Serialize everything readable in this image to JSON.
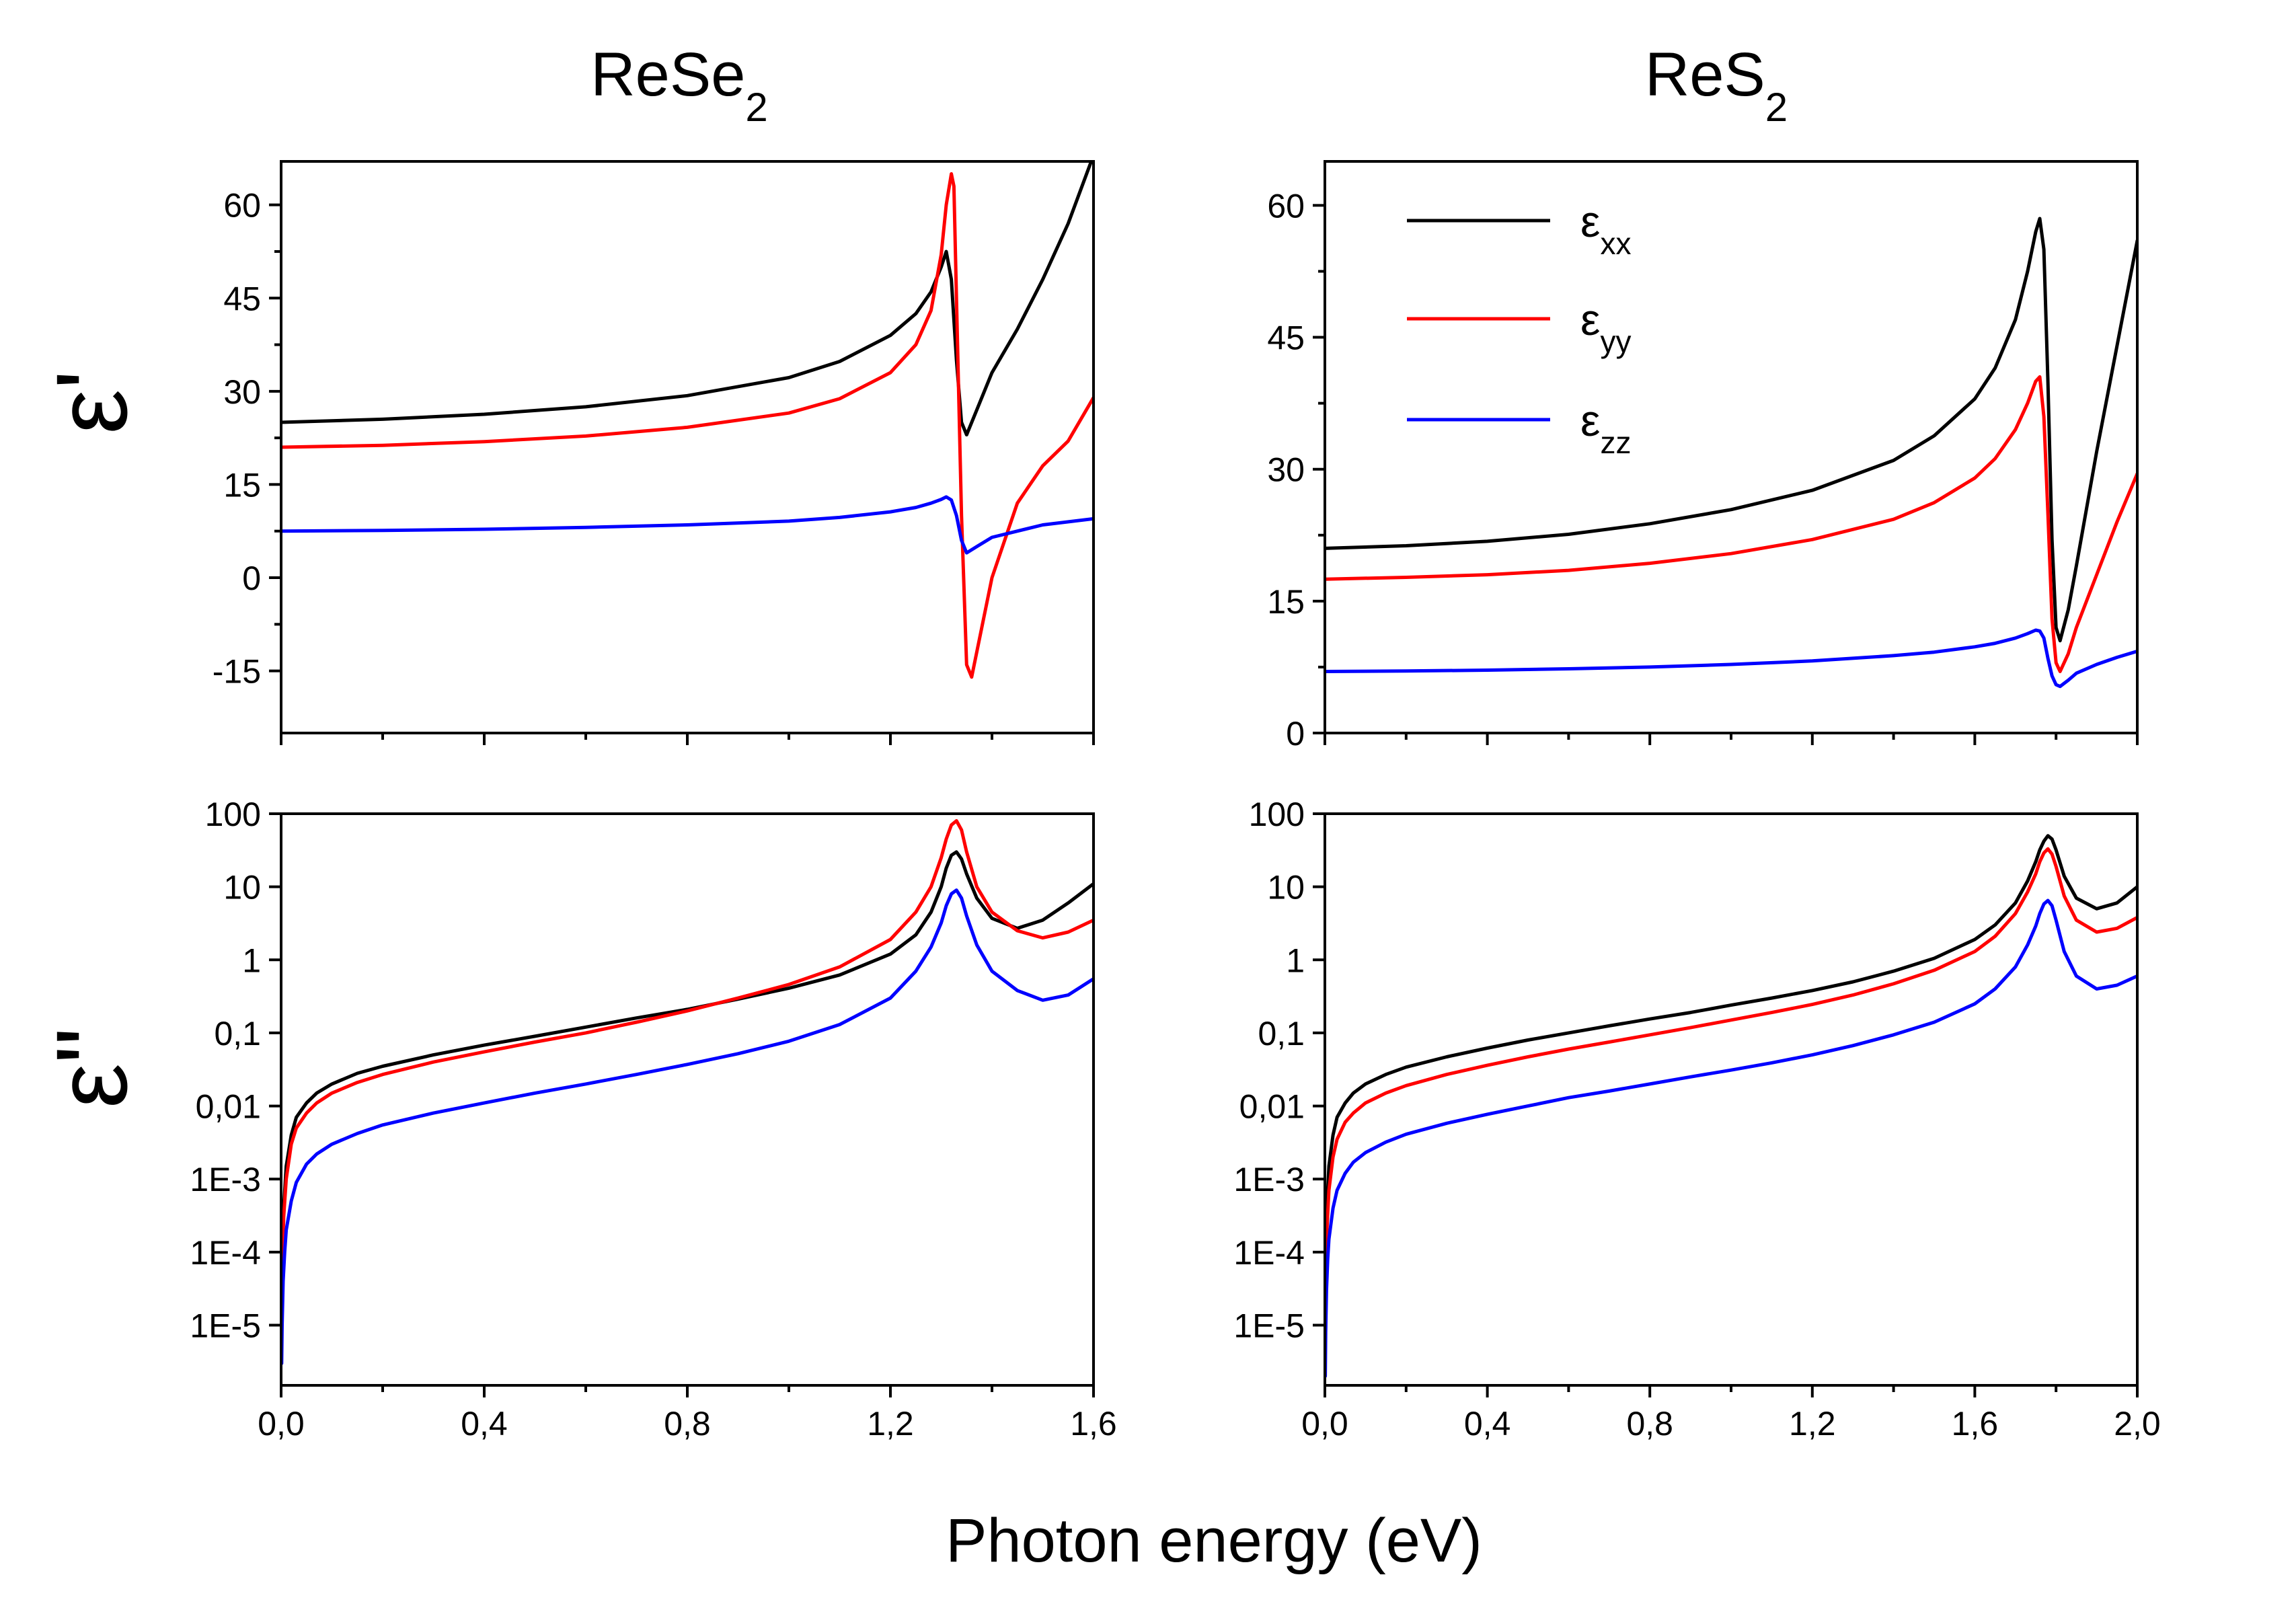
{
  "figure": {
    "columns": [
      {
        "title": "ReSe",
        "subscript": "2"
      },
      {
        "title": "ReS",
        "subscript": "2"
      }
    ],
    "xlabel": "Photon energy (eV)",
    "row_labels": [
      {
        "symbol": "ε",
        "prime": "'"
      },
      {
        "symbol": "ε",
        "prime": "\""
      }
    ],
    "legend": [
      {
        "symbol": "ε",
        "sub": "xx",
        "color": "#000000"
      },
      {
        "symbol": "ε",
        "sub": "yy",
        "color": "#ff0000"
      },
      {
        "symbol": "ε",
        "sub": "zz",
        "color": "#0000ff"
      }
    ]
  },
  "chart_data": [
    {
      "id": "rese2-real",
      "type": "line",
      "title": "ReSe2",
      "ylabel": "ε'",
      "xlim": [
        0,
        1.6
      ],
      "ylim": [
        -25,
        67
      ],
      "yscale": "linear",
      "xticks": [
        "0,0",
        "0,4",
        "0,8",
        "1,2",
        "1,6"
      ],
      "yticks": [
        {
          "value": -15,
          "label": "-15"
        },
        {
          "value": 0,
          "label": "0"
        },
        {
          "value": 15,
          "label": "15"
        },
        {
          "value": 30,
          "label": "30"
        },
        {
          "value": 45,
          "label": "45"
        },
        {
          "value": 60,
          "label": "60"
        }
      ],
      "series": [
        {
          "name": "εxx",
          "color": "#000000",
          "x": [
            0,
            0.2,
            0.4,
            0.6,
            0.8,
            1.0,
            1.1,
            1.2,
            1.25,
            1.28,
            1.3,
            1.31,
            1.32,
            1.33,
            1.34,
            1.35,
            1.37,
            1.4,
            1.45,
            1.5,
            1.55,
            1.6
          ],
          "y": [
            25,
            25.5,
            26.3,
            27.5,
            29.3,
            32.2,
            34.8,
            39,
            42.5,
            46,
            50,
            52.5,
            48,
            35,
            25,
            23,
            27,
            33,
            40,
            48,
            57,
            68
          ]
        },
        {
          "name": "εyy",
          "color": "#ff0000",
          "x": [
            0,
            0.2,
            0.4,
            0.6,
            0.8,
            1.0,
            1.1,
            1.2,
            1.25,
            1.28,
            1.3,
            1.31,
            1.32,
            1.325,
            1.33,
            1.34,
            1.35,
            1.36,
            1.38,
            1.4,
            1.45,
            1.5,
            1.55,
            1.6
          ],
          "y": [
            21,
            21.3,
            21.9,
            22.8,
            24.2,
            26.5,
            28.8,
            33,
            37.5,
            43,
            52,
            60,
            65,
            63,
            45,
            10,
            -14,
            -16,
            -8,
            0,
            12,
            18,
            22,
            29
          ]
        },
        {
          "name": "εzz",
          "color": "#0000ff",
          "x": [
            0,
            0.2,
            0.4,
            0.6,
            0.8,
            1.0,
            1.1,
            1.2,
            1.25,
            1.28,
            1.3,
            1.31,
            1.32,
            1.33,
            1.34,
            1.35,
            1.37,
            1.4,
            1.5,
            1.6
          ],
          "y": [
            7.5,
            7.6,
            7.8,
            8.1,
            8.5,
            9.1,
            9.7,
            10.6,
            11.3,
            12,
            12.6,
            13,
            12.5,
            10,
            6,
            4,
            5,
            6.5,
            8.5,
            9.5
          ]
        }
      ]
    },
    {
      "id": "res2-real",
      "type": "line",
      "title": "ReS2",
      "ylabel": "ε'",
      "xlim": [
        0,
        2.0
      ],
      "ylim": [
        0,
        65
      ],
      "yscale": "linear",
      "xticks": [
        "0,0",
        "0,4",
        "0,8",
        "1,2",
        "1,6",
        "2,0"
      ],
      "yticks": [
        {
          "value": 0,
          "label": "0"
        },
        {
          "value": 15,
          "label": "15"
        },
        {
          "value": 30,
          "label": "30"
        },
        {
          "value": 45,
          "label": "45"
        },
        {
          "value": 60,
          "label": "60"
        }
      ],
      "series": [
        {
          "name": "εxx",
          "color": "#000000",
          "x": [
            0,
            0.2,
            0.4,
            0.6,
            0.8,
            1.0,
            1.2,
            1.4,
            1.5,
            1.6,
            1.65,
            1.7,
            1.73,
            1.75,
            1.76,
            1.77,
            1.78,
            1.79,
            1.8,
            1.81,
            1.83,
            1.85,
            1.9,
            1.95,
            2.0
          ],
          "y": [
            21,
            21.3,
            21.8,
            22.6,
            23.8,
            25.4,
            27.6,
            31,
            33.8,
            38,
            41.5,
            47,
            52.5,
            57,
            58.5,
            55,
            40,
            22,
            12,
            10.5,
            14,
            19,
            32,
            44,
            56
          ]
        },
        {
          "name": "εyy",
          "color": "#ff0000",
          "x": [
            0,
            0.2,
            0.4,
            0.6,
            0.8,
            1.0,
            1.2,
            1.4,
            1.5,
            1.6,
            1.65,
            1.7,
            1.73,
            1.75,
            1.76,
            1.77,
            1.78,
            1.79,
            1.8,
            1.81,
            1.83,
            1.85,
            1.9,
            1.95,
            2.0
          ],
          "y": [
            17.5,
            17.7,
            18,
            18.5,
            19.3,
            20.4,
            22,
            24.3,
            26.2,
            29,
            31.2,
            34.5,
            37.5,
            40,
            40.5,
            36,
            25,
            13,
            8,
            7,
            9,
            12,
            18,
            24,
            29.5
          ]
        },
        {
          "name": "εzz",
          "color": "#0000ff",
          "x": [
            0,
            0.2,
            0.4,
            0.6,
            0.8,
            1.0,
            1.2,
            1.4,
            1.5,
            1.6,
            1.65,
            1.7,
            1.73,
            1.75,
            1.76,
            1.77,
            1.78,
            1.79,
            1.8,
            1.81,
            1.83,
            1.85,
            1.9,
            1.95,
            2.0
          ],
          "y": [
            7,
            7.05,
            7.15,
            7.3,
            7.5,
            7.8,
            8.2,
            8.8,
            9.2,
            9.8,
            10.2,
            10.8,
            11.3,
            11.7,
            11.6,
            10.8,
            8.5,
            6.5,
            5.5,
            5.3,
            6,
            6.8,
            7.8,
            8.6,
            9.3
          ]
        }
      ]
    },
    {
      "id": "rese2-imag",
      "type": "line",
      "title": "ReSe2",
      "ylabel": "ε\"",
      "xlim": [
        0,
        1.6
      ],
      "ylim": [
        1.5e-06,
        100
      ],
      "yscale": "log",
      "xticks": [
        "0,0",
        "0,4",
        "0,8",
        "1,2",
        "1,6"
      ],
      "yticks": [
        {
          "value": 1e-05,
          "label": "1E-5"
        },
        {
          "value": 0.0001,
          "label": "1E-4"
        },
        {
          "value": 0.001,
          "label": "1E-3"
        },
        {
          "value": 0.01,
          "label": "0,01"
        },
        {
          "value": 0.1,
          "label": "0,1"
        },
        {
          "value": 1,
          "label": "1"
        },
        {
          "value": 10,
          "label": "10"
        },
        {
          "value": 100,
          "label": "100"
        }
      ],
      "series": [
        {
          "name": "εxx",
          "color": "#000000",
          "x": [
            0.001,
            0.003,
            0.005,
            0.01,
            0.02,
            0.03,
            0.05,
            0.07,
            0.1,
            0.15,
            0.2,
            0.3,
            0.4,
            0.5,
            0.6,
            0.7,
            0.8,
            0.9,
            1.0,
            1.1,
            1.2,
            1.25,
            1.28,
            1.3,
            1.31,
            1.32,
            1.33,
            1.34,
            1.35,
            1.37,
            1.4,
            1.45,
            1.5,
            1.55,
            1.6
          ],
          "y": [
            3e-05,
            0.00015,
            0.0004,
            0.0015,
            0.004,
            0.007,
            0.011,
            0.015,
            0.02,
            0.028,
            0.035,
            0.05,
            0.068,
            0.09,
            0.12,
            0.16,
            0.21,
            0.29,
            0.41,
            0.62,
            1.2,
            2.2,
            4.5,
            10,
            18,
            27,
            30,
            24,
            15,
            7,
            3.7,
            2.7,
            3.5,
            6,
            11
          ]
        },
        {
          "name": "εyy",
          "color": "#ff0000",
          "x": [
            0.001,
            0.003,
            0.005,
            0.01,
            0.02,
            0.03,
            0.05,
            0.07,
            0.1,
            0.15,
            0.2,
            0.3,
            0.4,
            0.5,
            0.6,
            0.7,
            0.8,
            0.9,
            1.0,
            1.1,
            1.2,
            1.25,
            1.28,
            1.3,
            1.31,
            1.32,
            1.33,
            1.34,
            1.35,
            1.37,
            1.4,
            1.45,
            1.5,
            1.55,
            1.6
          ],
          "y": [
            2e-05,
            0.0001,
            0.0003,
            0.001,
            0.003,
            0.005,
            0.008,
            0.011,
            0.015,
            0.021,
            0.027,
            0.04,
            0.055,
            0.075,
            0.1,
            0.14,
            0.2,
            0.3,
            0.46,
            0.8,
            1.9,
            4.5,
            10,
            25,
            45,
            70,
            80,
            60,
            30,
            10,
            4.5,
            2.5,
            2,
            2.4,
            3.5
          ]
        },
        {
          "name": "εzz",
          "color": "#0000ff",
          "x": [
            0.001,
            0.002,
            0.004,
            0.007,
            0.01,
            0.02,
            0.03,
            0.05,
            0.07,
            0.1,
            0.15,
            0.2,
            0.3,
            0.4,
            0.5,
            0.6,
            0.7,
            0.8,
            0.9,
            1.0,
            1.1,
            1.2,
            1.25,
            1.28,
            1.3,
            1.31,
            1.32,
            1.33,
            1.34,
            1.35,
            1.37,
            1.4,
            1.45,
            1.5,
            1.55,
            1.6
          ],
          "y": [
            3e-06,
            1e-05,
            4e-05,
            0.0001,
            0.0002,
            0.0005,
            0.0009,
            0.0016,
            0.0022,
            0.003,
            0.0042,
            0.0055,
            0.008,
            0.011,
            0.015,
            0.02,
            0.027,
            0.037,
            0.052,
            0.077,
            0.13,
            0.3,
            0.7,
            1.5,
            3.2,
            5.5,
            8,
            9,
            7,
            4,
            1.6,
            0.7,
            0.38,
            0.28,
            0.33,
            0.55
          ]
        }
      ]
    },
    {
      "id": "res2-imag",
      "type": "line",
      "title": "ReS2",
      "ylabel": "ε\"",
      "xlim": [
        0,
        2.0
      ],
      "ylim": [
        1.5e-06,
        100
      ],
      "yscale": "log",
      "xticks": [
        "0,0",
        "0,4",
        "0,8",
        "1,2",
        "1,6",
        "2,0"
      ],
      "yticks": [
        {
          "value": 1e-05,
          "label": "1E-5"
        },
        {
          "value": 0.0001,
          "label": "1E-4"
        },
        {
          "value": 0.001,
          "label": "1E-3"
        },
        {
          "value": 0.01,
          "label": "0,01"
        },
        {
          "value": 0.1,
          "label": "0,1"
        },
        {
          "value": 1,
          "label": "1"
        },
        {
          "value": 10,
          "label": "10"
        },
        {
          "value": 100,
          "label": "100"
        }
      ],
      "series": [
        {
          "name": "εxx",
          "color": "#000000",
          "x": [
            0.001,
            0.003,
            0.005,
            0.01,
            0.02,
            0.03,
            0.05,
            0.07,
            0.1,
            0.15,
            0.2,
            0.3,
            0.4,
            0.5,
            0.6,
            0.7,
            0.8,
            0.9,
            1.0,
            1.1,
            1.2,
            1.3,
            1.4,
            1.5,
            1.6,
            1.65,
            1.7,
            1.73,
            1.75,
            1.76,
            1.77,
            1.78,
            1.79,
            1.8,
            1.82,
            1.85,
            1.9,
            1.95,
            2.0
          ],
          "y": [
            3e-05,
            0.00015,
            0.0004,
            0.0015,
            0.004,
            0.007,
            0.011,
            0.015,
            0.02,
            0.027,
            0.034,
            0.047,
            0.062,
            0.08,
            0.1,
            0.125,
            0.155,
            0.19,
            0.24,
            0.3,
            0.38,
            0.5,
            0.7,
            1.05,
            1.9,
            3,
            6,
            12,
            22,
            32,
            42,
            50,
            45,
            32,
            14,
            7,
            5,
            6,
            10
          ]
        },
        {
          "name": "εyy",
          "color": "#ff0000",
          "x": [
            0.001,
            0.003,
            0.005,
            0.01,
            0.02,
            0.03,
            0.05,
            0.07,
            0.1,
            0.15,
            0.2,
            0.3,
            0.4,
            0.5,
            0.6,
            0.7,
            0.8,
            0.9,
            1.0,
            1.1,
            1.2,
            1.3,
            1.4,
            1.5,
            1.6,
            1.65,
            1.7,
            1.73,
            1.75,
            1.76,
            1.77,
            1.78,
            1.79,
            1.8,
            1.82,
            1.85,
            1.9,
            1.95,
            2.0
          ],
          "y": [
            2e-05,
            0.0001,
            0.0002,
            0.0007,
            0.002,
            0.0035,
            0.006,
            0.008,
            0.011,
            0.015,
            0.019,
            0.027,
            0.036,
            0.047,
            0.06,
            0.075,
            0.094,
            0.118,
            0.15,
            0.19,
            0.245,
            0.33,
            0.47,
            0.72,
            1.3,
            2.1,
            4.3,
            8.5,
            15,
            22,
            29,
            33,
            28,
            19,
            7.5,
            3.5,
            2.4,
            2.7,
            3.8
          ]
        },
        {
          "name": "εzz",
          "color": "#0000ff",
          "x": [
            0.001,
            0.002,
            0.004,
            0.007,
            0.01,
            0.02,
            0.03,
            0.05,
            0.07,
            0.1,
            0.15,
            0.2,
            0.3,
            0.4,
            0.5,
            0.6,
            0.7,
            0.8,
            0.9,
            1.0,
            1.1,
            1.2,
            1.3,
            1.4,
            1.5,
            1.6,
            1.65,
            1.7,
            1.73,
            1.75,
            1.76,
            1.77,
            1.78,
            1.79,
            1.8,
            1.82,
            1.85,
            1.9,
            1.95,
            2.0
          ],
          "y": [
            2e-06,
            8e-06,
            3e-05,
            8e-05,
            0.00015,
            0.0004,
            0.0007,
            0.0012,
            0.0017,
            0.0023,
            0.0032,
            0.0041,
            0.0058,
            0.0077,
            0.01,
            0.013,
            0.016,
            0.02,
            0.025,
            0.031,
            0.039,
            0.05,
            0.067,
            0.094,
            0.14,
            0.25,
            0.4,
            0.8,
            1.6,
            2.9,
            4.3,
            5.8,
            6.5,
            5.5,
            3.5,
            1.3,
            0.6,
            0.4,
            0.45,
            0.6
          ]
        }
      ]
    }
  ]
}
